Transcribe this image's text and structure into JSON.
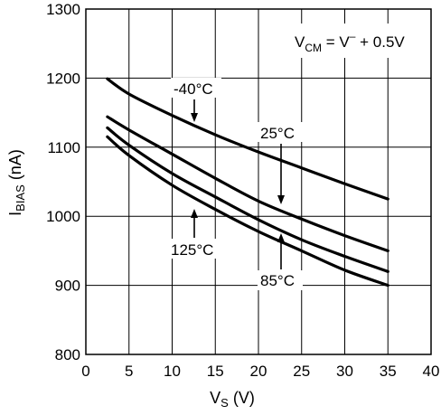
{
  "chart_data": {
    "type": "line",
    "xlabel_main": "V",
    "xlabel_sub": "S",
    "xlabel_unit": " (V)",
    "ylabel_main": "I",
    "ylabel_sub": "BIAS",
    "ylabel_unit": " (nA)",
    "xlim": [
      0,
      40
    ],
    "ylim": [
      800,
      1300
    ],
    "xticks": [
      0,
      5,
      10,
      15,
      20,
      25,
      30,
      35,
      40
    ],
    "yticks": [
      800,
      900,
      1000,
      1100,
      1200,
      1300
    ],
    "grid": true,
    "condition": {
      "lhs_main": "V",
      "lhs_sub": "CM",
      "equals": " = ",
      "rhs_main": "V",
      "rhs_sup": "–",
      "rhs_tail": " + 0.5V"
    },
    "series": [
      {
        "name": "-40°C",
        "x": [
          2.5,
          5,
          10,
          15,
          20,
          25,
          30,
          35
        ],
        "y": [
          1199,
          1177,
          1146,
          1118,
          1093,
          1070,
          1047,
          1025
        ]
      },
      {
        "name": "25°C",
        "x": [
          2.5,
          5,
          10,
          15,
          20,
          25,
          30,
          35
        ],
        "y": [
          1144,
          1125,
          1090,
          1055,
          1022,
          996,
          972,
          950
        ]
      },
      {
        "name": "85°C",
        "x": [
          2.5,
          5,
          10,
          15,
          20,
          25,
          30,
          35
        ],
        "y": [
          1128,
          1103,
          1062,
          1028,
          995,
          966,
          942,
          920
        ]
      },
      {
        "name": "125°C",
        "x": [
          2.5,
          5,
          10,
          15,
          20,
          25,
          30,
          35
        ],
        "y": [
          1115,
          1088,
          1045,
          1010,
          978,
          950,
          922,
          900
        ]
      }
    ],
    "annotations": [
      {
        "label": "-40°C",
        "arrow_to": [
          13,
          1133
        ]
      },
      {
        "label": "25°C",
        "arrow_to": [
          23,
          1012
        ]
      },
      {
        "label": "85°C",
        "arrow_to": [
          23,
          981
        ]
      },
      {
        "label": "125°C",
        "arrow_to": [
          13,
          1006
        ]
      }
    ]
  }
}
